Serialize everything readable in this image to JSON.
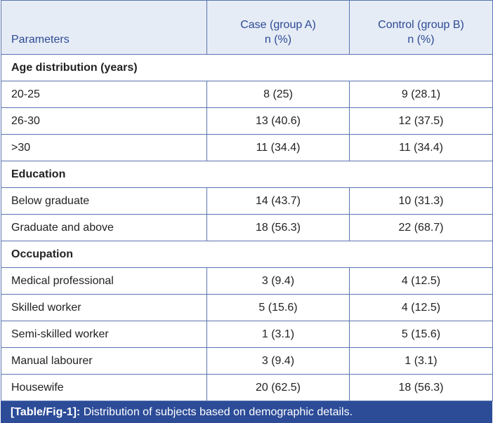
{
  "headers": {
    "col1": "Parameters",
    "col2_line1": "Case (group A)",
    "col2_line2": "n (%)",
    "col3_line1": "Control (group B)",
    "col3_line2": "n (%)"
  },
  "sections": [
    {
      "title": "Age distribution (years)",
      "rows": [
        {
          "label": "20-25",
          "a": "8 (25)",
          "b": "9 (28.1)"
        },
        {
          "label": "26-30",
          "a": "13 (40.6)",
          "b": "12 (37.5)"
        },
        {
          "label": ">30",
          "a": "11 (34.4)",
          "b": "11 (34.4)"
        }
      ]
    },
    {
      "title": "Education",
      "rows": [
        {
          "label": "Below graduate",
          "a": "14 (43.7)",
          "b": "10 (31.3)"
        },
        {
          "label": "Graduate and above",
          "a": "18 (56.3)",
          "b": "22 (68.7)"
        }
      ]
    },
    {
      "title": "Occupation",
      "rows": [
        {
          "label": "Medical professional",
          "a": "3 (9.4)",
          "b": "4 (12.5)"
        },
        {
          "label": "Skilled worker",
          "a": "5 (15.6)",
          "b": "4 (12.5)"
        },
        {
          "label": "Semi-skilled worker",
          "a": "1 (3.1)",
          "b": "5 (15.6)"
        },
        {
          "label": "Manual labourer",
          "a": "3 (9.4)",
          "b": "1 (3.1)"
        },
        {
          "label": "Housewife",
          "a": "20 (62.5)",
          "b": "18 (56.3)"
        }
      ]
    }
  ],
  "caption": {
    "label": "[Table/Fig-1]:",
    "text": " Distribution of subjects based on demographic details."
  }
}
